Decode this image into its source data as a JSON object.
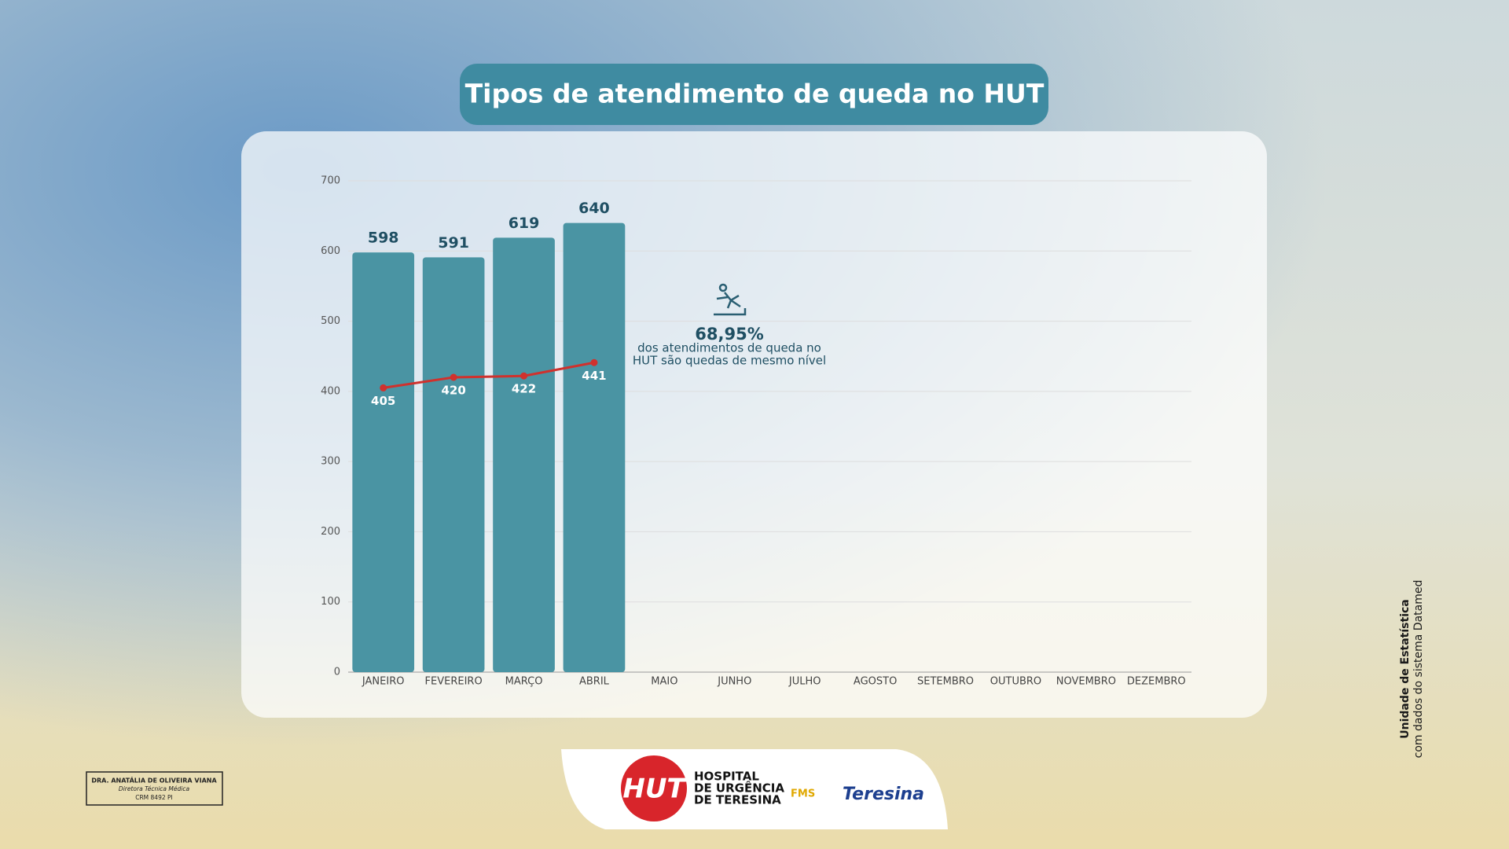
{
  "chart_data": {
    "type": "bar_line",
    "title": "Tipos de atendimento de queda no HUT",
    "categories": [
      "JANEIRO",
      "FEVEREIRO",
      "MARÇO",
      "ABRIL",
      "MAIO",
      "JUNHO",
      "JULHO",
      "AGOSTO",
      "SETEMBRO",
      "OUTUBRO",
      "NOVEMBRO",
      "DEZEMBRO"
    ],
    "series": [
      {
        "type": "bar",
        "color": "#4a94a3",
        "values": [
          598,
          591,
          619,
          640,
          null,
          null,
          null,
          null,
          null,
          null,
          null,
          null
        ]
      },
      {
        "type": "line",
        "color": "#d0312d",
        "values": [
          405,
          420,
          422,
          441,
          null,
          null,
          null,
          null,
          null,
          null,
          null,
          null
        ]
      }
    ],
    "ylim": [
      0,
      700
    ],
    "yticks": [
      0,
      100,
      200,
      300,
      400,
      500,
      600,
      700
    ],
    "grid": true,
    "annotation": {
      "value": "68,95%",
      "lines": [
        "dos atendimentos de queda no",
        "HUT são quedas de mesmo nível"
      ]
    }
  },
  "side_note": [
    "Unidade de Estatística",
    "com dados do sistema Datamed"
  ],
  "signature": [
    "DRA. ANATÁLIA DE OLIVEIRA VIANA",
    "Diretora Técnica Médica",
    "CRM 8492 PI"
  ],
  "footer": {
    "logo": "HUT",
    "hospital": [
      "HOSPITAL",
      "DE URGÊNCIA",
      "DE TERESINA"
    ],
    "fms": "FMS",
    "city": "Teresina"
  }
}
